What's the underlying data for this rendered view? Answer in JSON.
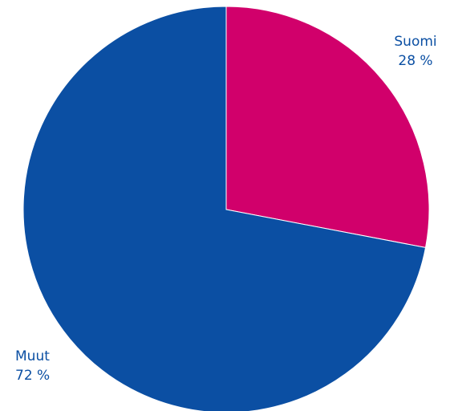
{
  "chart_data": {
    "type": "pie",
    "slices": [
      {
        "label": "Suomi",
        "value": 28,
        "value_label": "28 %",
        "color": "#d1006b"
      },
      {
        "label": "Muut",
        "value": 72,
        "value_label": "72 %",
        "color": "#0b4fa3"
      }
    ],
    "start_angle": "12 o'clock",
    "direction": "clockwise",
    "legend": "none (labels placed next to slices)"
  }
}
